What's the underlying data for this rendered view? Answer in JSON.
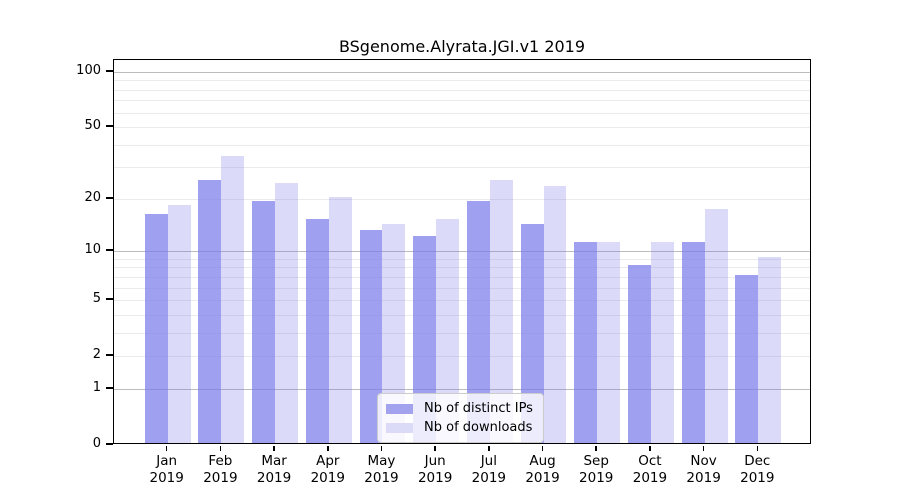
{
  "chart_data": {
    "type": "bar",
    "title": "BSgenome.Alyrata.JGI.v1 2019",
    "categories": [
      "Jan",
      "Feb",
      "Mar",
      "Apr",
      "May",
      "Jun",
      "Jul",
      "Aug",
      "Sep",
      "Oct",
      "Nov",
      "Dec"
    ],
    "category_year": "2019",
    "series": [
      {
        "name": "Nb of distinct IPs",
        "values": [
          16,
          25,
          19,
          15,
          13,
          12,
          19,
          14,
          11,
          8,
          11,
          7
        ],
        "fill": "rgba(123,123,234,0.72)",
        "swatch": "#a2a2ef"
      },
      {
        "name": "Nb of downloads",
        "values": [
          18,
          34,
          24,
          20,
          14,
          15,
          25,
          23,
          11,
          11,
          17,
          9
        ],
        "fill": "rgba(123,123,234,0.27)",
        "swatch": "#dbdbf8"
      }
    ],
    "yscale": "log1p",
    "ylim": [
      0,
      116
    ],
    "y_ticks": [
      100,
      50,
      20,
      10,
      5,
      2,
      1,
      0
    ],
    "y_gridlines_minor": [
      2,
      3,
      4,
      5,
      6,
      7,
      8,
      9,
      20,
      30,
      40,
      50,
      60,
      70,
      80,
      90
    ],
    "y_gridlines_emph": [
      1,
      10,
      100
    ],
    "grid": "on",
    "legend_position": "lower-center",
    "colors": {
      "grid_minor": "#ebebeb",
      "grid_emph": "#bcbcbc",
      "axis": "#000000"
    }
  }
}
